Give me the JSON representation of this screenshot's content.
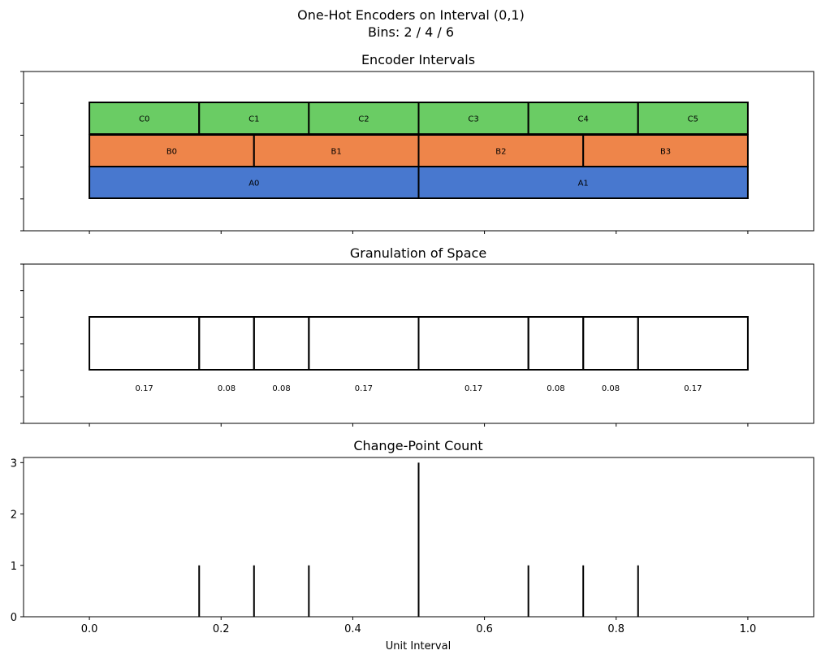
{
  "chart_data": [
    {
      "type": "bar",
      "title": "Encoder Intervals",
      "encoders": [
        {
          "labels": [
            "A0",
            "A1"
          ],
          "edges": [
            0,
            0.5,
            1
          ],
          "color": "#4878cf"
        },
        {
          "labels": [
            "B0",
            "B1",
            "B2",
            "B3"
          ],
          "edges": [
            0,
            0.25,
            0.5,
            0.75,
            1
          ],
          "color": "#ee854a"
        },
        {
          "labels": [
            "C0",
            "C1",
            "C2",
            "C3",
            "C4",
            "C5"
          ],
          "edges": [
            0,
            0.1667,
            0.3333,
            0.5,
            0.6667,
            0.8333,
            1
          ],
          "color": "#6acc64"
        }
      ],
      "xlim": [
        -0.1,
        1.1
      ]
    },
    {
      "type": "bar",
      "title": "Granulation of Space",
      "edges": [
        0,
        0.1667,
        0.25,
        0.3333,
        0.5,
        0.6667,
        0.75,
        0.8333,
        1
      ],
      "widths": [
        "0.17",
        "0.08",
        "0.08",
        "0.17",
        "0.17",
        "0.08",
        "0.08",
        "0.17"
      ],
      "xlim": [
        -0.1,
        1.1
      ]
    },
    {
      "type": "bar",
      "title": "Change-Point Count",
      "x": [
        0.1667,
        0.25,
        0.3333,
        0.5,
        0.6667,
        0.75,
        0.8333
      ],
      "values": [
        1,
        1,
        1,
        3,
        1,
        1,
        1
      ],
      "xlabel": "Unit Interval",
      "xlim": [
        -0.1,
        1.1
      ],
      "ylim": [
        0,
        3.1
      ],
      "yticks": [
        "0",
        "1",
        "2",
        "3"
      ],
      "xticks": [
        "0.0",
        "0.2",
        "0.4",
        "0.6",
        "0.8",
        "1.0"
      ]
    }
  ],
  "figure": {
    "suptitle_line1": "One-Hot Encoders on Interval (0,1)",
    "suptitle_line2": "Bins: 2 / 4 / 6"
  }
}
